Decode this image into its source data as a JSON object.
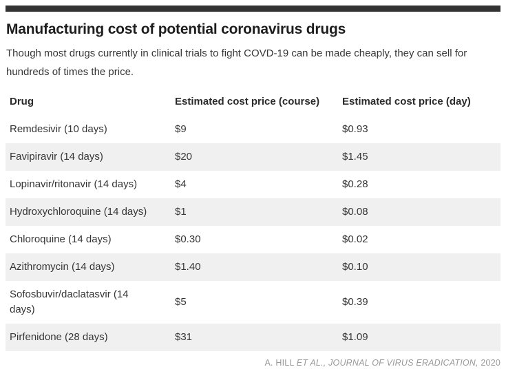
{
  "header": {
    "title": "Manufacturing cost of potential coronavirus drugs",
    "subtitle": "Though most drugs currently in clinical trials to fight COVD-19 can be made cheaply, they can sell for hundreds of times the price."
  },
  "chart_data": {
    "type": "table",
    "title": "Manufacturing cost of potential coronavirus drugs",
    "columns": [
      "Drug",
      "Estimated cost price (course)",
      "Estimated cost price (day)"
    ],
    "rows": [
      [
        "Remdesivir (10 days)",
        "$9",
        "$0.93"
      ],
      [
        "Favipiravir (14 days)",
        "$20",
        "$1.45"
      ],
      [
        "Lopinavir/ritonavir (14 days)",
        "$4",
        "$0.28"
      ],
      [
        "Hydroxychloroquine (14 days)",
        "$1",
        "$0.08"
      ],
      [
        "Chloroquine (14 days)",
        "$0.30",
        "$0.02"
      ],
      [
        "Azithromycin (14 days)",
        "$1.40",
        "$0.10"
      ],
      [
        "Sofosbuvir/daclatasvir (14 days)",
        "$5",
        "$0.39"
      ],
      [
        "Pirfenidone (28 days)",
        "$31",
        "$1.09"
      ]
    ],
    "cost_course_usd": [
      9,
      20,
      4,
      1,
      0.3,
      1.4,
      5,
      31
    ],
    "cost_day_usd": [
      0.93,
      1.45,
      0.28,
      0.08,
      0.02,
      0.1,
      0.39,
      1.09
    ]
  },
  "source": {
    "author": "A. HILL ",
    "citation_italic": "ET AL., JOURNAL OF VIRUS ERADICATION,",
    "year": " 2020"
  },
  "colors": {
    "top_bar": "#333333",
    "title_text": "#1d1d1d",
    "body_text": "#363636",
    "row_alt_bg": "#f0f0f0",
    "source_text": "#999999"
  }
}
